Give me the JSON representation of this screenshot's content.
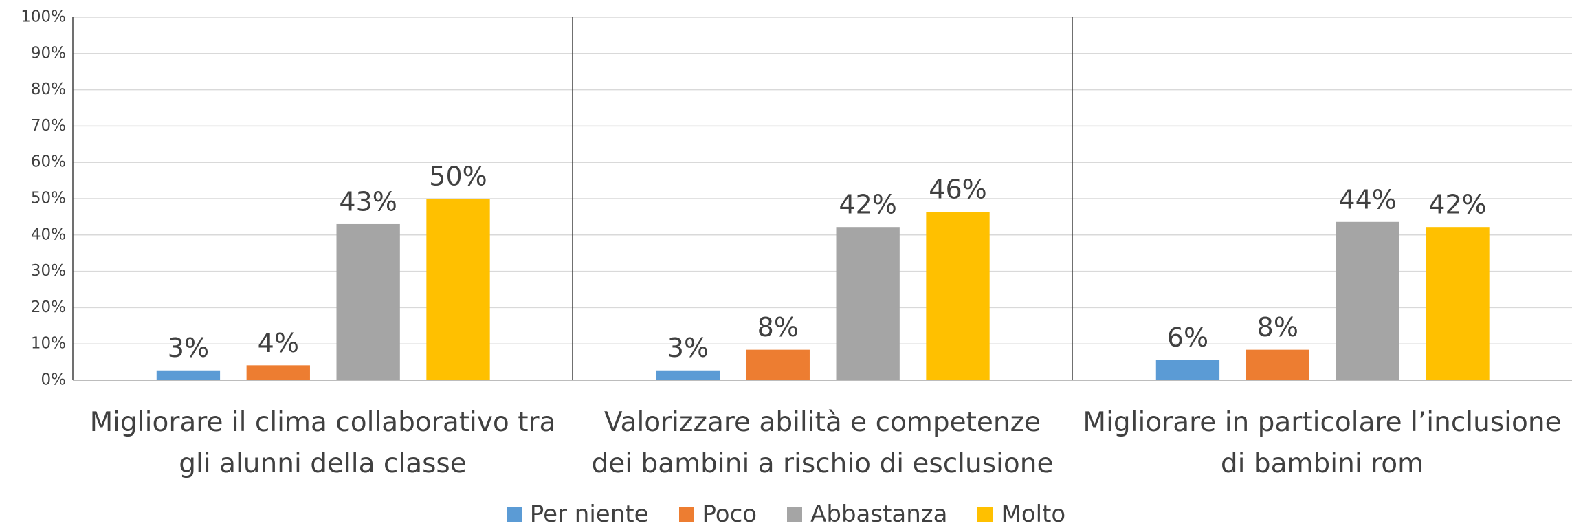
{
  "chart_data": {
    "type": "bar",
    "categories": [
      "Migliorare il clima collaborativo tra gli alunni della classe",
      "Valorizzare abilità e competenze dei bambini a rischio di esclusione",
      "Migliorare in particolare l’inclusione di bambini rom"
    ],
    "series": [
      {
        "name": "Per niente",
        "color": "#5b9bd5",
        "values": [
          2.7,
          2.7,
          5.6
        ],
        "value_labels": [
          "3%",
          "3%",
          "6%"
        ]
      },
      {
        "name": "Poco",
        "color": "#ed7d31",
        "values": [
          4.1,
          8.4,
          8.4
        ],
        "value_labels": [
          "4%",
          "8%",
          "8%"
        ]
      },
      {
        "name": "Abbastanza",
        "color": "#a5a5a5",
        "values": [
          43,
          42.2,
          43.6
        ],
        "value_labels": [
          "43%",
          "42%",
          "44%"
        ]
      },
      {
        "name": "Molto",
        "color": "#ffc000",
        "values": [
          50,
          46.4,
          42.2
        ],
        "value_labels": [
          "50%",
          "46%",
          "42%"
        ]
      }
    ],
    "ylim": [
      0,
      100
    ],
    "yticks": [
      {
        "value": 0,
        "label": "0%"
      },
      {
        "value": 10,
        "label": "10%"
      },
      {
        "value": 20,
        "label": "20%"
      },
      {
        "value": 30,
        "label": "30%"
      },
      {
        "value": 40,
        "label": "40%"
      },
      {
        "value": 50,
        "label": "50%"
      },
      {
        "value": 60,
        "label": "60%"
      },
      {
        "value": 70,
        "label": "70%"
      },
      {
        "value": 80,
        "label": "80%"
      },
      {
        "value": 90,
        "label": "90%"
      },
      {
        "value": 100,
        "label": "100%"
      }
    ],
    "grid": true,
    "legend": "bottom"
  }
}
